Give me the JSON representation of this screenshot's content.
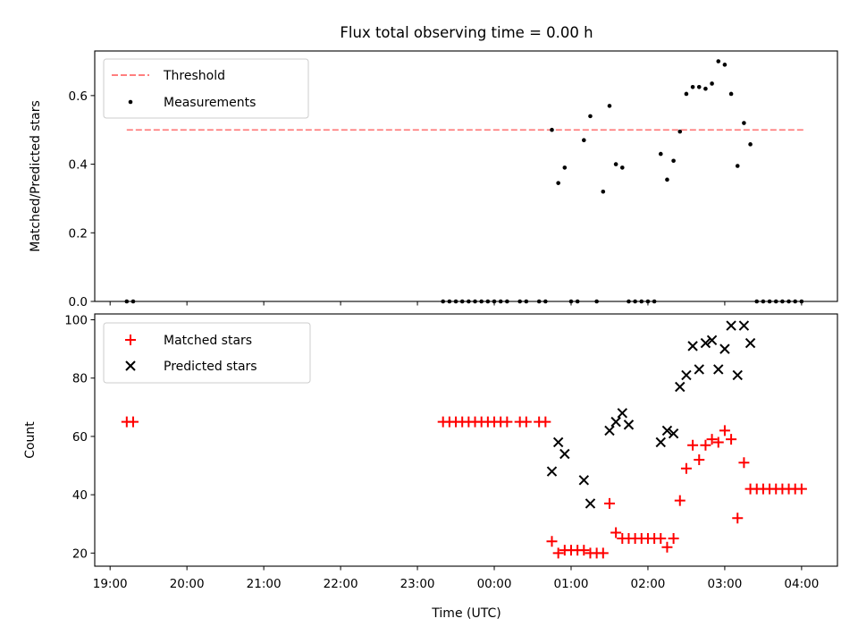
{
  "chart_data": {
    "title": "Flux total observing time = 0.00 h",
    "xlabel": "Time (UTC)",
    "x_ticks": [
      "19:00",
      "20:00",
      "21:00",
      "22:00",
      "23:00",
      "00:00",
      "01:00",
      "02:00",
      "03:00",
      "04:00"
    ],
    "x_range": [
      "18:48",
      "04:28"
    ],
    "top_panel": {
      "type": "scatter",
      "ylabel": "Matched/Predicted stars",
      "ylim": [
        0,
        0.73
      ],
      "y_ticks": [
        "0.0",
        "0.2",
        "0.4",
        "0.6"
      ],
      "legend_position": "upper left",
      "threshold": {
        "name": "Threshold",
        "value": 0.5,
        "x_start": "19:13",
        "x_end": "04:03",
        "color": "#ff7f7f",
        "style": "dashed"
      },
      "measurements": {
        "name": "Measurements",
        "color": "#000000",
        "x": [
          "19:13",
          "19:18",
          "23:20",
          "23:25",
          "23:30",
          "23:35",
          "23:40",
          "23:45",
          "23:50",
          "23:55",
          "00:00",
          "00:05",
          "00:10",
          "00:20",
          "00:25",
          "00:35",
          "00:40",
          "00:45",
          "00:50",
          "00:55",
          "01:00",
          "01:05",
          "01:10",
          "01:15",
          "01:20",
          "01:25",
          "01:30",
          "01:35",
          "01:40",
          "01:45",
          "01:50",
          "01:55",
          "02:00",
          "02:05",
          "02:10",
          "02:15",
          "02:20",
          "02:25",
          "02:30",
          "02:35",
          "02:40",
          "02:45",
          "02:50",
          "02:55",
          "03:00",
          "03:05",
          "03:10",
          "03:15",
          "03:20",
          "03:25",
          "03:30",
          "03:35",
          "03:40",
          "03:45",
          "03:50",
          "03:55",
          "04:00"
        ],
        "y": [
          0,
          0,
          0,
          0,
          0,
          0,
          0,
          0,
          0,
          0,
          0,
          0,
          0,
          0,
          0,
          0,
          0,
          0.5,
          0.345,
          0.39,
          0,
          0,
          0.47,
          0.54,
          0,
          0.32,
          0.57,
          0.4,
          0.39,
          0,
          0,
          0,
          0,
          0,
          0.43,
          0.355,
          0.41,
          0.495,
          0.605,
          0.625,
          0.625,
          0.62,
          0.635,
          0.7,
          0.69,
          0.605,
          0.395,
          0.52,
          0.458,
          0,
          0,
          0,
          0,
          0,
          0,
          0,
          0
        ]
      }
    },
    "bottom_panel": {
      "type": "scatter",
      "ylabel": "Count",
      "ylim": [
        15.5,
        102
      ],
      "y_ticks": [
        "20",
        "40",
        "60",
        "80",
        "100"
      ],
      "legend_position": "upper left",
      "matched": {
        "name": "Matched stars",
        "color": "#ff0000",
        "marker": "+",
        "x": [
          "19:13",
          "19:18",
          "23:20",
          "23:25",
          "23:30",
          "23:35",
          "23:40",
          "23:45",
          "23:50",
          "23:55",
          "00:00",
          "00:05",
          "00:10",
          "00:20",
          "00:25",
          "00:35",
          "00:40",
          "00:45",
          "00:50",
          "00:55",
          "01:00",
          "01:05",
          "01:10",
          "01:15",
          "01:20",
          "01:25",
          "01:30",
          "01:35",
          "01:40",
          "01:45",
          "01:50",
          "01:55",
          "02:00",
          "02:05",
          "02:10",
          "02:15",
          "02:20",
          "02:25",
          "02:30",
          "02:35",
          "02:40",
          "02:45",
          "02:50",
          "02:55",
          "03:00",
          "03:05",
          "03:10",
          "03:15",
          "03:20",
          "03:25",
          "03:30",
          "03:35",
          "03:40",
          "03:45",
          "03:50",
          "03:55",
          "04:00"
        ],
        "y": [
          65,
          65,
          65,
          65,
          65,
          65,
          65,
          65,
          65,
          65,
          65,
          65,
          65,
          65,
          65,
          65,
          65,
          24,
          20,
          21,
          21,
          21,
          21,
          20,
          20,
          20,
          37,
          27,
          25,
          25,
          25,
          25,
          25,
          25,
          25,
          22,
          25,
          38,
          49,
          57,
          52,
          57,
          59,
          58,
          62,
          59,
          32,
          51,
          42,
          42,
          42,
          42,
          42,
          42,
          42,
          42,
          42
        ]
      },
      "predicted": {
        "name": "Predicted stars",
        "color": "#000000",
        "marker": "x",
        "x": [
          "00:45",
          "00:50",
          "00:55",
          "01:10",
          "01:15",
          "01:30",
          "01:35",
          "01:40",
          "01:45",
          "02:10",
          "02:15",
          "02:20",
          "02:25",
          "02:30",
          "02:35",
          "02:40",
          "02:45",
          "02:50",
          "02:55",
          "03:00",
          "03:05",
          "03:10",
          "03:15",
          "03:20"
        ],
        "y": [
          48,
          58,
          54,
          45,
          37,
          62,
          65,
          68,
          64,
          58,
          62,
          61,
          77,
          81,
          91,
          83,
          92,
          93,
          83,
          90,
          98,
          81,
          98,
          92
        ]
      }
    }
  }
}
